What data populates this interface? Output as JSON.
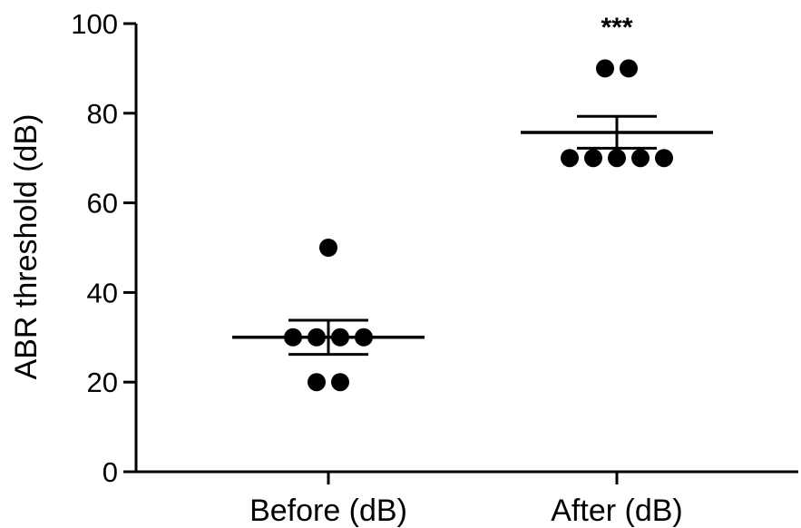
{
  "chart_data": {
    "type": "scatter",
    "ylabel": "ABR threshold (dB)",
    "ylim": [
      0,
      100
    ],
    "yticks": [
      0,
      20,
      40,
      60,
      80,
      100
    ],
    "categories": [
      "Before (dB)",
      "After (dB)"
    ],
    "groups": [
      {
        "category": "Before (dB)",
        "points": [
          50,
          30,
          30,
          30,
          30,
          20,
          20
        ],
        "mean": 30,
        "sem_low": 26.2,
        "sem_high": 33.8,
        "annotation": ""
      },
      {
        "category": "After (dB)",
        "points": [
          90,
          90,
          70,
          70,
          70,
          70,
          70
        ],
        "mean": 75.7,
        "sem_low": 72.2,
        "sem_high": 79.3,
        "annotation": "***"
      }
    ],
    "marker_color": "#000000",
    "grid": false,
    "legend": "none"
  }
}
